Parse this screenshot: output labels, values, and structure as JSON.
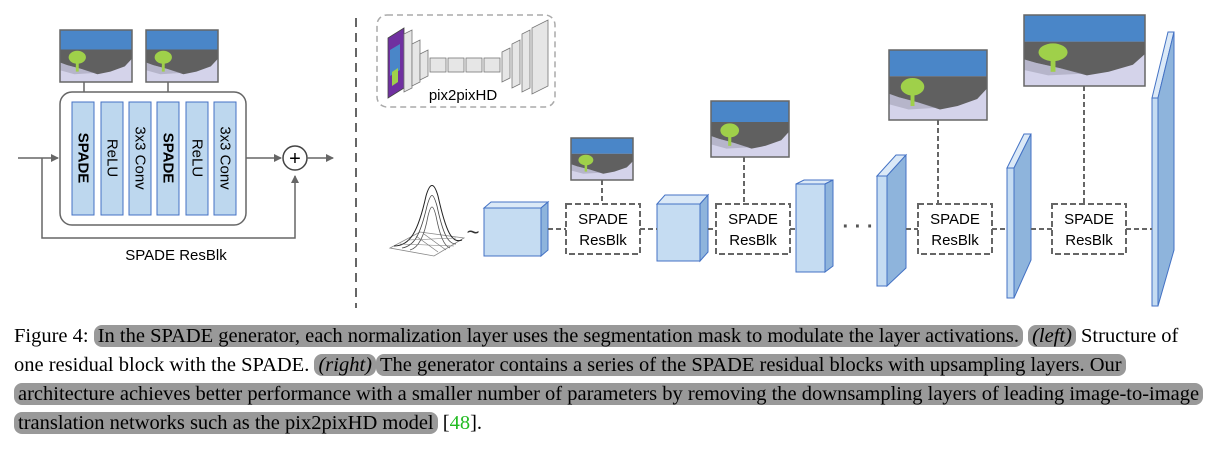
{
  "left_panel": {
    "layers": [
      "SPADE",
      "ReLU",
      "3x3 Conv",
      "SPADE",
      "ReLU",
      "3x3 Conv"
    ],
    "block_label": "SPADE ResBlk",
    "add_symbol": "+"
  },
  "right_panel": {
    "inset_label": "pix2pixHD",
    "noise_tilde": "~",
    "resblk_line1": "SPADE",
    "resblk_line2": "ResBlk",
    "ellipsis": "· · ·"
  },
  "caption": {
    "prefix": "Figure 4:",
    "sentence1": "In the SPADE generator, each normalization layer uses the segmentation mask to modulate the layer activations.",
    "left_tag": "(left)",
    "left_text": "Structure of one residual block with the SPADE.",
    "right_tag": "(right)",
    "right_text": "The generator contains a series of the SPADE residual blocks with upsampling layers. Our architecture achieves better performance with a smaller number of parameters by removing the downsampling layers of leading image-to-image translation networks such as the pix2pixHD model",
    "ref_open": "[",
    "ref_num": "48",
    "ref_close": "]."
  },
  "colors": {
    "layer_fill": "#bdd7ee",
    "layer_stroke": "#4472c4",
    "sky": "#4a86c8",
    "road": "#5f5f5f",
    "ground": "#cfcfe6",
    "tree": "#9fd04a",
    "highlight": "#999999",
    "ref": "#22bb22"
  }
}
